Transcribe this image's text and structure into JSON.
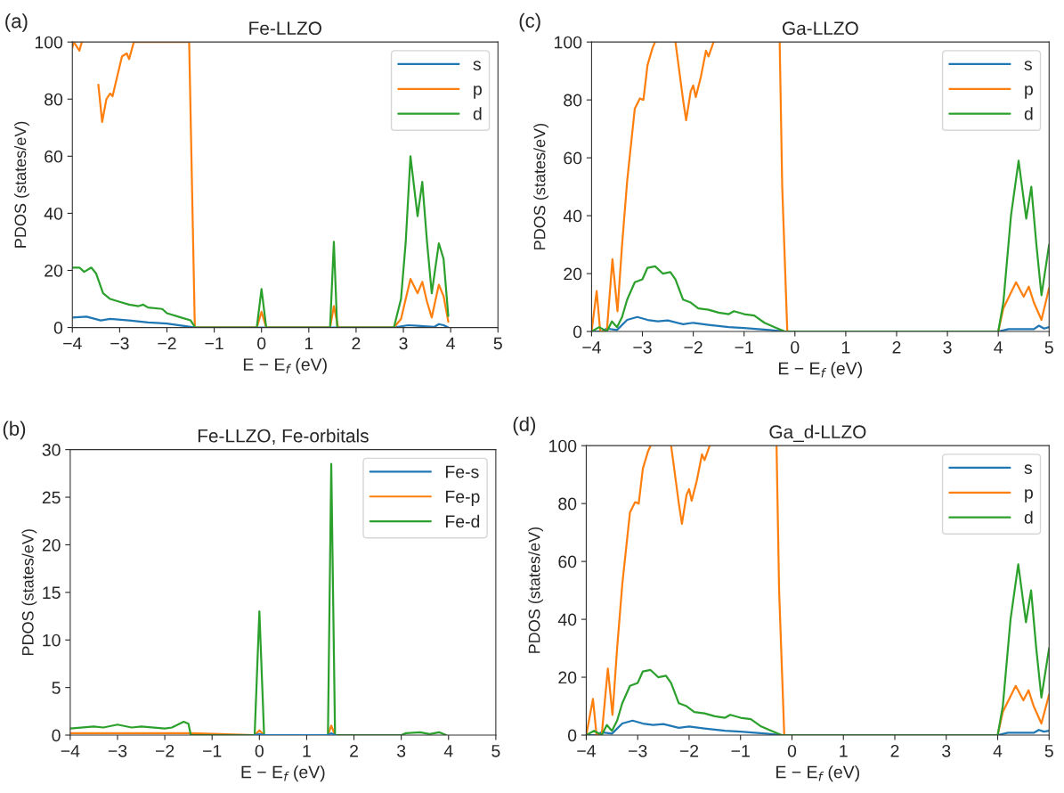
{
  "chart_data": [
    {
      "type": "line",
      "title": "Fe-LLZO",
      "xlabel": "E − E$_{f}$ (eV)",
      "ylabel": "PDOS (states/eV)",
      "annotations": [
        "(a)"
      ],
      "xlim": [
        -4,
        5
      ],
      "xticks": [
        -4,
        -3,
        -2,
        -1,
        0,
        1,
        2,
        3,
        4,
        5
      ],
      "ylim": [
        0,
        100
      ],
      "yticks": [
        0,
        20,
        40,
        60,
        80,
        100
      ],
      "legend": "top right",
      "grid": false,
      "series": [
        {
          "name": "s",
          "color": "#1f77b4",
          "x": [
            -4,
            -3.7,
            -3.4,
            -3.2,
            -2.8,
            -2.4,
            -2,
            -1.7,
            -1.4,
            -1,
            0,
            1,
            2,
            2.8,
            3.1,
            3.3,
            3.5,
            3.65,
            3.75,
            3.85,
            3.95
          ],
          "values": [
            3.5,
            3.8,
            2.5,
            3,
            2.5,
            1.8,
            1.4,
            0.7,
            0,
            0,
            0,
            0,
            0,
            0,
            0.8,
            0.6,
            0.4,
            0.2,
            1.2,
            0.8,
            0
          ]
        },
        {
          "name": "p",
          "color": "#ff7f0e",
          "x": [
            -4,
            -3.97,
            -3.85,
            -3.8,
            -3.55,
            -3.45,
            -3.37,
            -3.28,
            -3.2,
            -3.15,
            -3.05,
            -2.95,
            -2.85,
            -2.8,
            -2.7,
            -1.53,
            -1.41,
            -0.1,
            0,
            0.1,
            1.45,
            1.53,
            1.62,
            2.8,
            2.95,
            3.15,
            3.3,
            3.4,
            3.5,
            3.6,
            3.75,
            3.85,
            3.95
          ],
          "values": [
            98,
            100,
            97,
            100,
            null,
            85,
            72,
            80,
            82,
            81,
            88,
            95,
            96,
            94,
            100,
            100,
            0,
            0,
            5.5,
            0,
            0,
            7.5,
            0,
            0,
            3,
            17,
            12,
            16,
            9,
            3.5,
            15,
            11,
            2
          ]
        },
        {
          "name": "d",
          "color": "#2ca02c",
          "x": [
            -4,
            -3.85,
            -3.75,
            -3.6,
            -3.5,
            -3.35,
            -3.2,
            -3,
            -2.8,
            -2.6,
            -2.5,
            -2.4,
            -2.1,
            -2,
            -1.7,
            -1.5,
            -1.4,
            -0.1,
            0,
            0.1,
            1.45,
            1.53,
            1.6,
            2.8,
            2.95,
            3.05,
            3.15,
            3.3,
            3.4,
            3.5,
            3.6,
            3.75,
            3.85,
            3.95
          ],
          "values": [
            21,
            21,
            19.5,
            21,
            19,
            12,
            10,
            9,
            8,
            7.5,
            8,
            7,
            6.5,
            5,
            3.5,
            2.5,
            0,
            0,
            13.5,
            0,
            0,
            30,
            0,
            0,
            10,
            30,
            60,
            39,
            51,
            30,
            12,
            29.5,
            24,
            4
          ]
        }
      ]
    },
    {
      "type": "line",
      "title": "Ga-LLZO",
      "xlabel": "E − E$_{f}$ (eV)",
      "ylabel": "PDOS (states/eV)",
      "annotations": [
        "(c)"
      ],
      "xlim": [
        -4,
        5
      ],
      "xticks": [
        -4,
        -3,
        -2,
        -1,
        0,
        1,
        2,
        3,
        4,
        5
      ],
      "ylim": [
        0,
        100
      ],
      "yticks": [
        0,
        20,
        40,
        60,
        80,
        100
      ],
      "legend": "top right",
      "grid": false,
      "series": [
        {
          "name": "s",
          "color": "#1f77b4",
          "x": [
            -4,
            -3.8,
            -3.7,
            -3.5,
            -3.3,
            -3.1,
            -2.9,
            -2.7,
            -2.5,
            -2.2,
            -2,
            -1.7,
            -1.3,
            -1,
            -0.5,
            -0.2,
            4,
            4.2,
            4.5,
            4.7,
            4.8,
            4.9,
            5
          ],
          "values": [
            0,
            0,
            1,
            0.5,
            4,
            5,
            4,
            3.5,
            3.8,
            2.5,
            3,
            2.3,
            1.5,
            1.2,
            0.5,
            0,
            0,
            0.8,
            0.8,
            0.8,
            2,
            1,
            1.5
          ]
        },
        {
          "name": "p",
          "color": "#ff7f0e",
          "x": [
            -4,
            -3.9,
            -3.83,
            -3.7,
            -3.59,
            -3.49,
            -3.4,
            -3.3,
            -3.15,
            -3.05,
            -2.98,
            -2.9,
            -2.8,
            -2.75,
            -2.5,
            -2.35,
            -2.2,
            -2.14,
            -2.05,
            -2,
            -1.95,
            -1.85,
            -1.75,
            -1.7,
            -1.6,
            -0.5,
            -0.3,
            -0.25,
            -0.15,
            4,
            4.1,
            4.35,
            4.5,
            4.6,
            4.7,
            4.85,
            5
          ],
          "values": [
            0,
            14,
            0,
            0,
            25,
            7,
            30,
            52,
            77,
            80.5,
            80,
            92,
            98,
            100,
            null,
            100,
            80,
            73,
            83,
            85,
            81,
            88,
            97,
            95,
            100,
            null,
            100,
            50,
            0,
            0,
            8,
            17,
            12,
            15.5,
            10,
            4,
            15
          ]
        },
        {
          "name": "d",
          "color": "#2ca02c",
          "x": [
            -4,
            -3.85,
            -3.7,
            -3.6,
            -3.5,
            -3.4,
            -3.3,
            -3.15,
            -3,
            -2.9,
            -2.75,
            -2.6,
            -2.45,
            -2.35,
            -2.2,
            -2.05,
            -1.9,
            -1.7,
            -1.5,
            -1.3,
            -1.2,
            -1,
            -0.8,
            -0.6,
            -0.4,
            -0.2,
            4,
            4.1,
            4.25,
            4.4,
            4.55,
            4.65,
            4.75,
            4.85,
            5
          ],
          "values": [
            0,
            1.5,
            0,
            3.5,
            1.5,
            5,
            11,
            17,
            18,
            22,
            22.5,
            20,
            20.5,
            18,
            11,
            10,
            8,
            7.5,
            6.5,
            6,
            7,
            6,
            5.5,
            3,
            1.5,
            0,
            0,
            10,
            40,
            59,
            39,
            50,
            30,
            12.5,
            30
          ]
        }
      ]
    },
    {
      "type": "line",
      "title": "Fe-LLZO, Fe-orbitals",
      "xlabel": "E − E$_{f}$ (eV)",
      "ylabel": "PDOS (states/eV)",
      "annotations": [
        "(b)"
      ],
      "xlim": [
        -4,
        5
      ],
      "xticks": [
        -4,
        -3,
        -2,
        -1,
        0,
        1,
        2,
        3,
        4,
        5
      ],
      "ylim": [
        0,
        30
      ],
      "yticks": [
        0,
        5,
        10,
        15,
        20,
        25,
        30
      ],
      "legend": "top right",
      "grid": false,
      "series": [
        {
          "name": "Fe-s",
          "color": "#1f77b4",
          "x": [
            -0.1,
            0,
            0.1,
            1.45,
            1.52,
            1.6
          ],
          "values": [
            0,
            0.1,
            0,
            0,
            0.2,
            0
          ]
        },
        {
          "name": "Fe-p",
          "color": "#ff7f0e",
          "x": [
            -4,
            -1.45,
            -0.1,
            0,
            0.1,
            1.45,
            1.52,
            1.6,
            3
          ],
          "values": [
            0.2,
            0.2,
            0,
            0.5,
            0,
            0,
            1,
            0,
            0
          ]
        },
        {
          "name": "Fe-d",
          "color": "#2ca02c",
          "x": [
            -4,
            -3.5,
            -3.3,
            -3,
            -2.7,
            -2.5,
            -2,
            -1.85,
            -1.6,
            -1.5,
            -1.45,
            -0.1,
            0,
            0.1,
            1.45,
            1.52,
            1.6,
            3,
            3.1,
            3.4,
            3.6,
            3.8,
            3.95
          ],
          "values": [
            0.7,
            0.9,
            0.8,
            1.1,
            0.8,
            0.9,
            0.7,
            0.8,
            1.4,
            1.2,
            0,
            0,
            13,
            0,
            0,
            28.5,
            0,
            0,
            0.2,
            0.3,
            0.1,
            0.3,
            0
          ]
        }
      ]
    },
    {
      "type": "line",
      "title": "Ga_d-LLZO",
      "xlabel": "E − E$_{f}$ (eV)",
      "ylabel": "PDOS (states/eV)",
      "annotations": [
        "(d)"
      ],
      "xlim": [
        -4,
        5
      ],
      "xticks": [
        -4,
        -3,
        -2,
        -1,
        0,
        1,
        2,
        3,
        4,
        5
      ],
      "ylim": [
        0,
        100
      ],
      "yticks": [
        0,
        20,
        40,
        60,
        80,
        100
      ],
      "legend": "top right",
      "grid": false,
      "series": [
        {
          "name": "s",
          "color": "#1f77b4",
          "x": [
            -4,
            -3.8,
            -3.7,
            -3.5,
            -3.3,
            -3.1,
            -2.9,
            -2.7,
            -2.5,
            -2.2,
            -2,
            -1.7,
            -1.3,
            -1,
            -0.5,
            -0.2,
            4,
            4.2,
            4.5,
            4.7,
            4.8,
            4.9,
            5
          ],
          "values": [
            0,
            0,
            1,
            0.5,
            4,
            5,
            4,
            3.5,
            3.8,
            2.5,
            3,
            2.3,
            1.5,
            1.2,
            0.5,
            0,
            0,
            0.8,
            0.8,
            0.8,
            1.8,
            1.2,
            1.5
          ]
        },
        {
          "name": "p",
          "color": "#ff7f0e",
          "x": [
            -4,
            -3.87,
            -3.8,
            -3.7,
            -3.58,
            -3.49,
            -3.4,
            -3.3,
            -3.15,
            -3.05,
            -2.98,
            -2.9,
            -2.8,
            -2.75,
            -2.5,
            -2.35,
            -2.2,
            -2.14,
            -2.05,
            -2,
            -1.95,
            -1.85,
            -1.75,
            -1.7,
            -1.6,
            -0.5,
            -0.3,
            -0.25,
            -0.15,
            4,
            4.1,
            4.35,
            4.5,
            4.6,
            4.7,
            4.85,
            5
          ],
          "values": [
            0,
            12.5,
            0,
            0,
            23,
            7,
            30,
            52,
            77,
            80.5,
            80,
            92,
            98,
            100,
            null,
            100,
            80,
            73,
            83,
            85,
            81,
            88,
            97,
            95,
            100,
            null,
            100,
            50,
            0,
            0,
            8,
            17,
            12,
            15.5,
            10,
            4,
            14
          ]
        },
        {
          "name": "d",
          "color": "#2ca02c",
          "x": [
            -4,
            -3.85,
            -3.7,
            -3.6,
            -3.5,
            -3.4,
            -3.3,
            -3.15,
            -3,
            -2.9,
            -2.75,
            -2.6,
            -2.45,
            -2.35,
            -2.2,
            -2.05,
            -1.9,
            -1.7,
            -1.5,
            -1.3,
            -1.2,
            -1,
            -0.8,
            -0.6,
            -0.4,
            -0.2,
            4,
            4.1,
            4.25,
            4.4,
            4.55,
            4.65,
            4.75,
            4.85,
            5
          ],
          "values": [
            0,
            1.5,
            0,
            3.5,
            1.5,
            5,
            11,
            17,
            18,
            22,
            22.5,
            20,
            20.5,
            18,
            11,
            10,
            8,
            7.5,
            6.5,
            6,
            7,
            6,
            5.5,
            3,
            1.5,
            0,
            0,
            10,
            40,
            59,
            39,
            50,
            30,
            13,
            30
          ]
        }
      ]
    }
  ]
}
